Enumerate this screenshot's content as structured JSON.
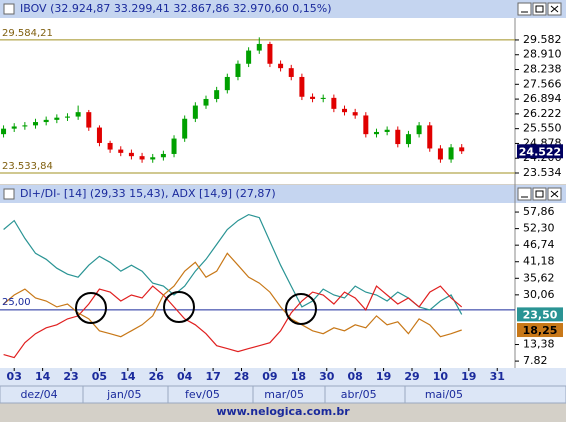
{
  "chart_data": [
    {
      "type": "candlestick",
      "title": "IBOV (32.924,87  33.299,41  32.867,86  32.970,60  0,15%)",
      "x": [
        1,
        4,
        7,
        10,
        13,
        16,
        19,
        22,
        25,
        28,
        31,
        34,
        37,
        40,
        43,
        46,
        49,
        52,
        55,
        58,
        61,
        64,
        67,
        70,
        73,
        76,
        79,
        82,
        85,
        88,
        91,
        94,
        97,
        100,
        103,
        106,
        109,
        112,
        115,
        118,
        121,
        124,
        127,
        130
      ],
      "open": [
        25300,
        25550,
        25650,
        25700,
        25850,
        25950,
        26050,
        26100,
        26300,
        25600,
        24900,
        24600,
        24450,
        24300,
        24150,
        24250,
        24400,
        25100,
        26000,
        26600,
        26900,
        27300,
        27900,
        28500,
        29100,
        29400,
        28500,
        28300,
        27900,
        27000,
        26900,
        26950,
        26450,
        26300,
        26150,
        25300,
        25400,
        25500,
        24850,
        25300,
        25700,
        24650,
        24150,
        24700
      ],
      "close": [
        25550,
        25650,
        25700,
        25850,
        25950,
        26050,
        26100,
        26300,
        25600,
        24900,
        24600,
        24450,
        24300,
        24150,
        24250,
        24400,
        25100,
        26000,
        26600,
        26900,
        27300,
        27900,
        28500,
        29100,
        29400,
        28500,
        28300,
        27900,
        27000,
        26900,
        26950,
        26450,
        26300,
        26150,
        25300,
        25400,
        25500,
        24850,
        25300,
        25700,
        24650,
        24150,
        24700,
        24522
      ],
      "high": [
        25700,
        25800,
        25850,
        26000,
        26100,
        26200,
        26250,
        26600,
        26400,
        25700,
        25000,
        24750,
        24600,
        24450,
        24400,
        24550,
        25250,
        26150,
        26750,
        27050,
        27450,
        28050,
        28650,
        29250,
        29700,
        29500,
        28650,
        28450,
        28050,
        27150,
        27100,
        27100,
        26600,
        26450,
        26300,
        25550,
        25650,
        25650,
        25450,
        25850,
        25850,
        24800,
        24850,
        24850
      ],
      "low": [
        25150,
        25400,
        25500,
        25550,
        25700,
        25800,
        25900,
        25950,
        25450,
        24750,
        24450,
        24300,
        24150,
        24000,
        24000,
        24100,
        24250,
        24950,
        25850,
        26450,
        26750,
        27150,
        27750,
        28350,
        28950,
        28350,
        28150,
        27750,
        26850,
        26750,
        26750,
        26300,
        26150,
        26000,
        25150,
        25150,
        25250,
        24700,
        24700,
        25150,
        24500,
        24000,
        24000,
        24400
      ],
      "up_color": "#00a000",
      "down_color": "#e00000",
      "xlim": [
        0,
        145
      ],
      "ylim": [
        23080,
        30580
      ],
      "yticks": [
        {
          "value": 29582,
          "label": "29.582"
        },
        {
          "value": 28910,
          "label": "28.910"
        },
        {
          "value": 28238,
          "label": "28.238"
        },
        {
          "value": 27566,
          "label": "27.566"
        },
        {
          "value": 26894,
          "label": "26.894"
        },
        {
          "value": 26222,
          "label": "26.222"
        },
        {
          "value": 25550,
          "label": "25.550"
        },
        {
          "value": 24878,
          "label": "24.878"
        },
        {
          "value": 24206,
          "label": "24.206"
        },
        {
          "value": 23534,
          "label": "23.534"
        }
      ],
      "reference_lines": [
        {
          "value": 29584.21,
          "label": "29.584,21"
        },
        {
          "value": 23533.84,
          "label": "23.533,84"
        }
      ],
      "value_boxes": [
        {
          "value": 24522,
          "label": "24.522",
          "color": "#000060"
        }
      ]
    },
    {
      "type": "line",
      "title": "DI+/DI- [14] (29,33  15,43), ADX [14,9] (27,87)",
      "x": [
        1,
        4,
        7,
        10,
        13,
        16,
        19,
        22,
        25,
        28,
        31,
        34,
        37,
        40,
        43,
        46,
        49,
        52,
        55,
        58,
        61,
        64,
        67,
        70,
        73,
        76,
        79,
        82,
        85,
        88,
        91,
        94,
        97,
        100,
        103,
        106,
        109,
        112,
        115,
        118,
        121,
        124,
        127,
        130
      ],
      "series": [
        {
          "color": "#2a9494",
          "values": [
            52,
            55,
            49,
            44,
            42,
            39,
            37,
            36,
            40,
            43,
            41,
            38,
            40,
            38,
            34,
            33,
            30,
            33,
            38,
            42,
            47,
            52,
            55,
            57,
            56,
            48,
            40,
            33,
            26,
            28,
            32,
            30,
            29,
            33,
            31,
            30,
            28,
            31,
            29,
            26,
            25,
            28,
            30,
            23.5
          ]
        },
        {
          "color": "#e02020",
          "values": [
            10,
            9,
            14,
            17,
            19,
            20,
            22,
            23,
            27,
            32,
            31,
            28,
            30,
            29,
            33,
            30,
            26,
            22,
            20,
            17,
            13,
            12,
            11,
            12,
            13,
            14,
            18,
            24,
            28,
            31,
            30,
            27,
            31,
            29,
            25,
            33,
            30,
            27,
            29,
            26,
            31,
            33,
            29,
            26
          ]
        },
        {
          "color": "#c87818",
          "values": [
            27,
            30,
            32,
            29,
            28,
            26,
            27,
            24,
            22,
            18,
            17,
            16,
            18,
            20,
            23,
            30,
            33,
            38,
            41,
            36,
            38,
            44,
            40,
            36,
            34,
            31,
            26,
            22,
            20,
            18,
            17,
            19,
            18,
            20,
            19,
            23,
            20,
            21,
            17,
            22,
            20,
            16,
            17,
            18.25
          ]
        }
      ],
      "xlim": [
        0,
        145
      ],
      "ylim": [
        5.5,
        60.9
      ],
      "yticks": [
        {
          "value": 57.86,
          "label": "57,86"
        },
        {
          "value": 52.3,
          "label": "52,30"
        },
        {
          "value": 46.74,
          "label": "46,74"
        },
        {
          "value": 41.18,
          "label": "41,18"
        },
        {
          "value": 35.62,
          "label": "35,62"
        },
        {
          "value": 30.06,
          "label": "30,06"
        },
        {
          "value": 13.38,
          "label": "13,38"
        },
        {
          "value": 7.82,
          "label": "7.82"
        }
      ],
      "reference_lines": [
        {
          "value": 25,
          "label": "25,00"
        }
      ],
      "value_boxes": [
        {
          "value": 23.5,
          "label": "23,50",
          "color": "#2a9494"
        },
        {
          "value": 18.25,
          "label": "18,25",
          "color": "#c87818"
        }
      ],
      "xticks": [
        {
          "value": 4,
          "label": "03"
        },
        {
          "value": 12,
          "label": "14"
        },
        {
          "value": 20,
          "label": "23"
        },
        {
          "value": 28,
          "label": "05"
        },
        {
          "value": 36,
          "label": "14"
        },
        {
          "value": 44,
          "label": "26"
        },
        {
          "value": 52,
          "label": "04"
        },
        {
          "value": 60,
          "label": "17"
        },
        {
          "value": 68,
          "label": "28"
        },
        {
          "value": 76,
          "label": "09"
        },
        {
          "value": 84,
          "label": "18"
        },
        {
          "value": 92,
          "label": "30"
        },
        {
          "value": 100,
          "label": "08"
        },
        {
          "value": 108,
          "label": "19"
        },
        {
          "value": 116,
          "label": "29"
        },
        {
          "value": 124,
          "label": "10"
        },
        {
          "value": 132,
          "label": "19"
        },
        {
          "value": 140,
          "label": "31"
        }
      ],
      "months": [
        {
          "value": 11,
          "label": "dez/04"
        },
        {
          "value": 35,
          "label": "jan/05"
        },
        {
          "value": 57,
          "label": "fev/05"
        },
        {
          "value": 80,
          "label": "mar/05"
        },
        {
          "value": 101,
          "label": "abr/05"
        },
        {
          "value": 125,
          "label": "mai/05"
        }
      ]
    }
  ],
  "footer": "www.nelogica.com.br"
}
